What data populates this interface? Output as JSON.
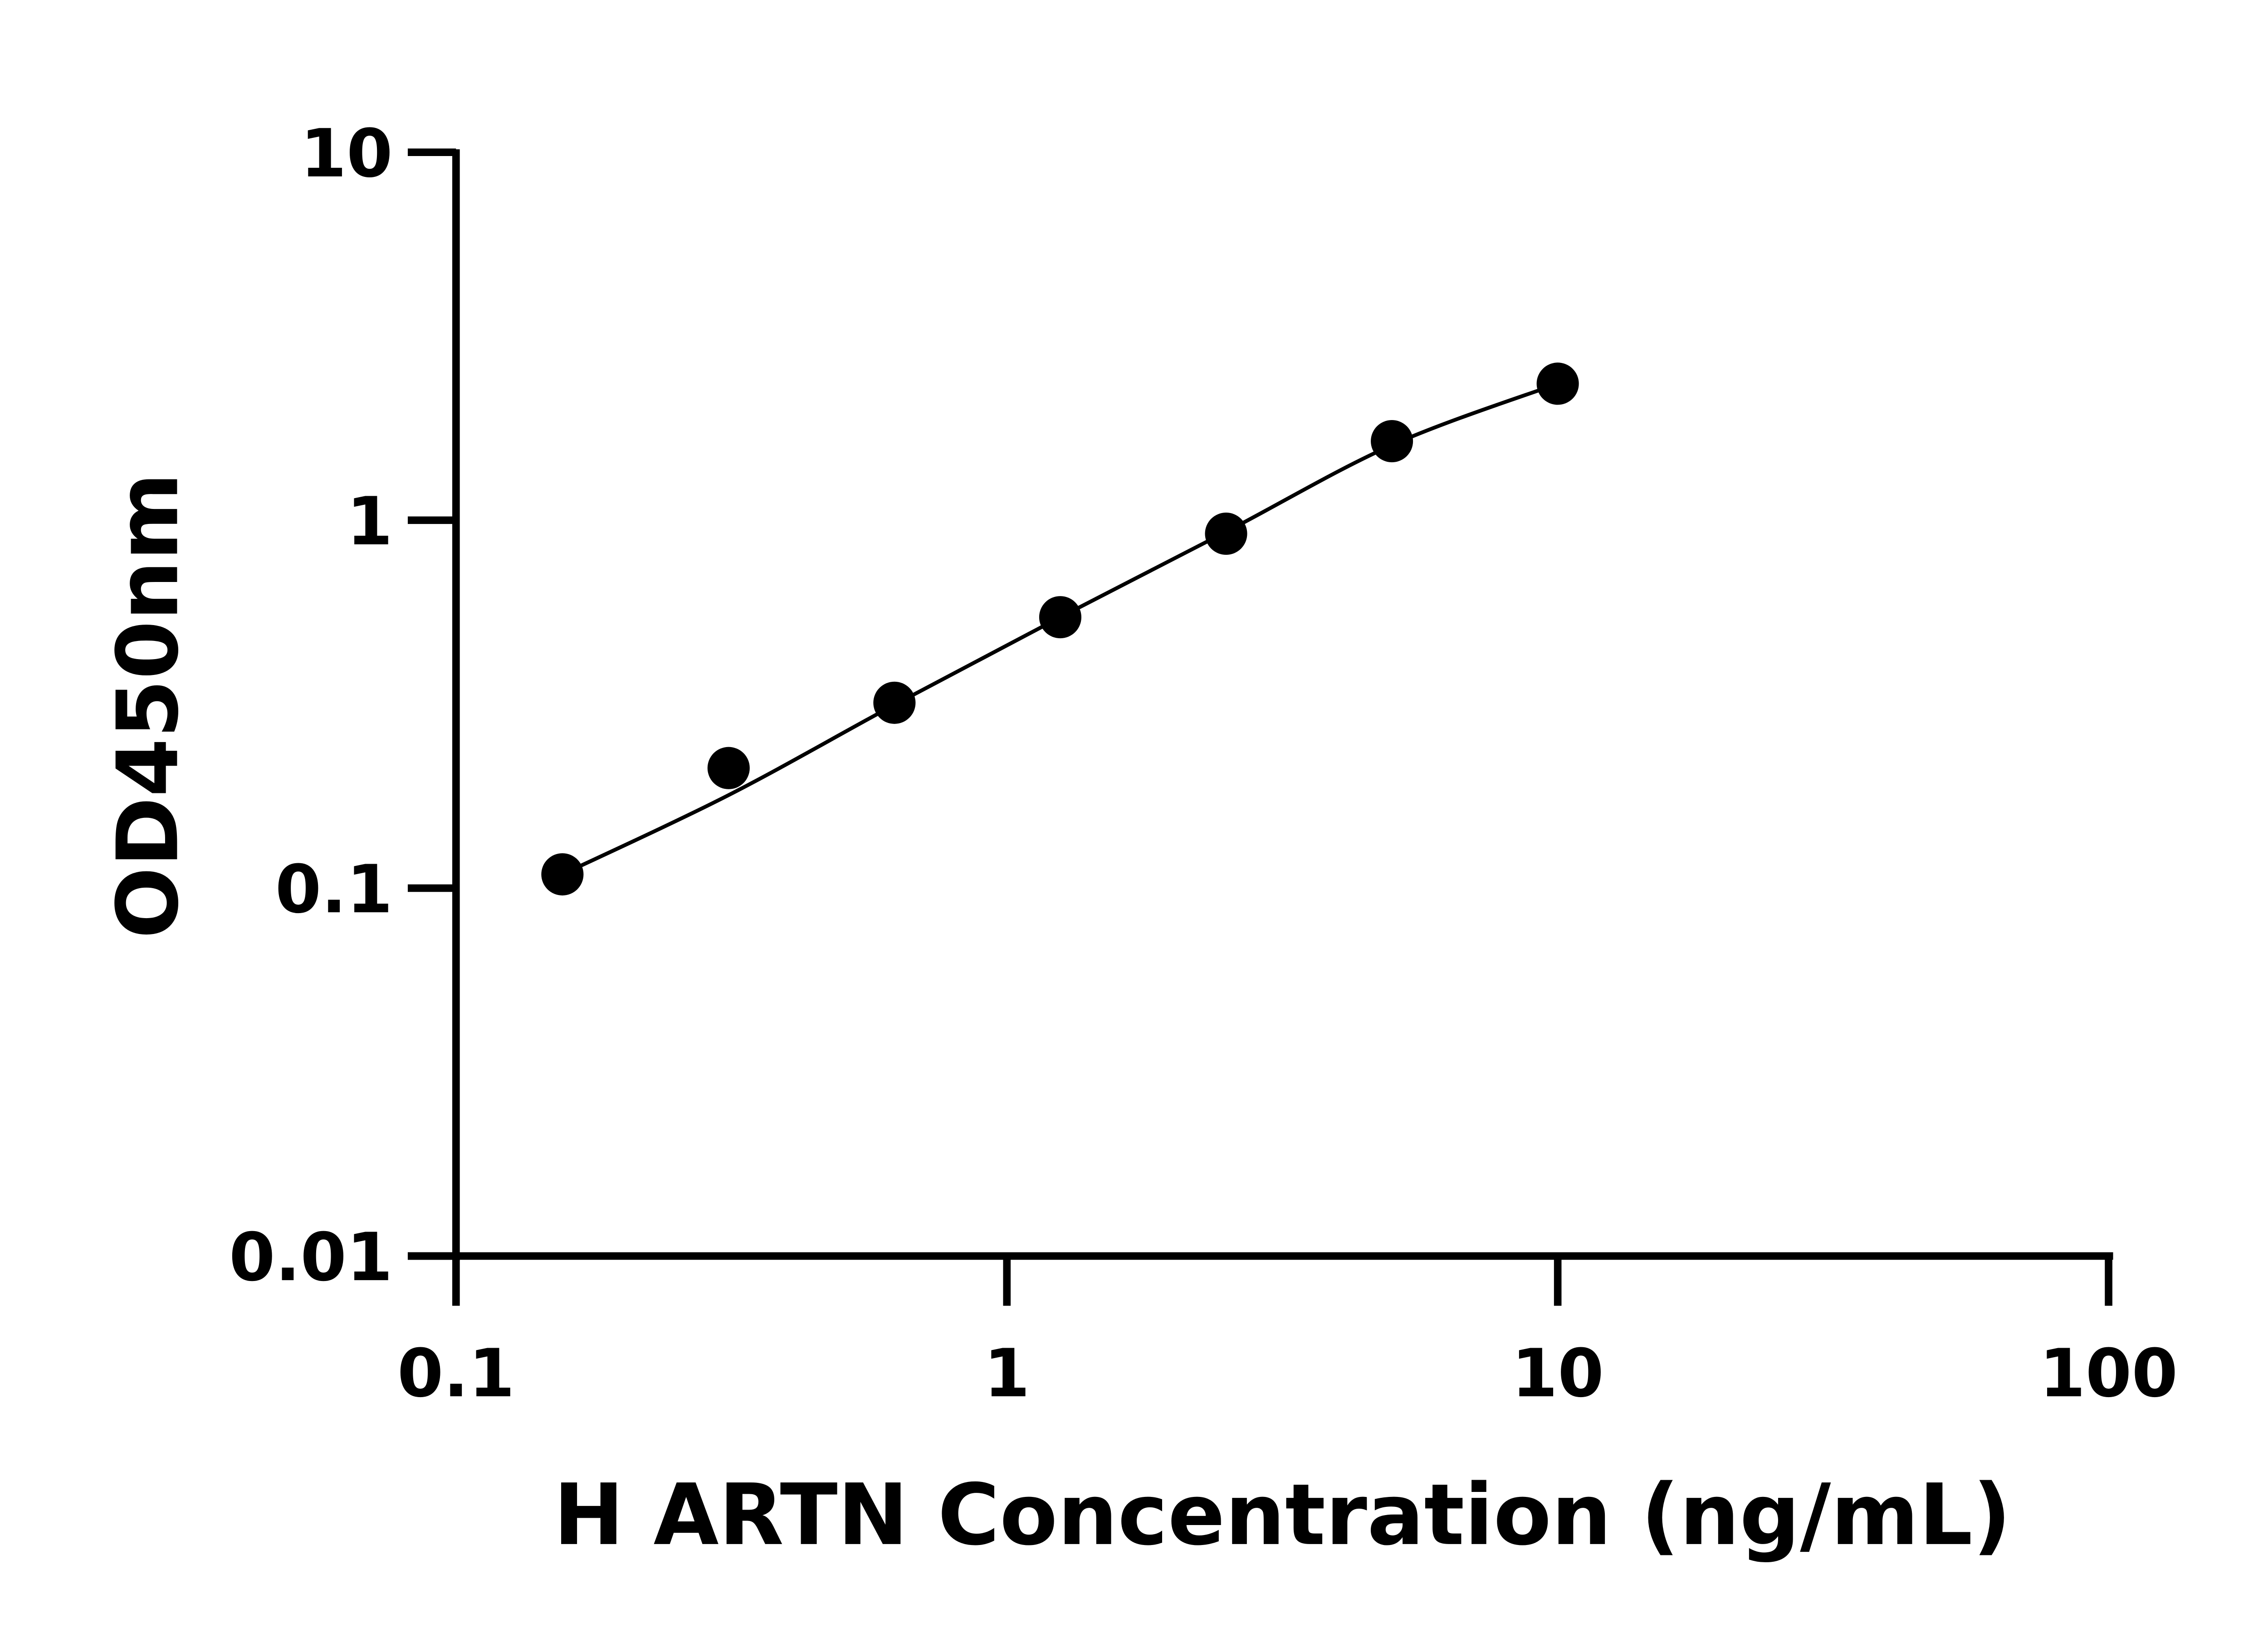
{
  "chart_data": {
    "type": "scatter",
    "title": "",
    "xlabel": "H ARTN Concentration (ng/mL)",
    "ylabel": "OD450nm",
    "x_scale": "log",
    "y_scale": "log",
    "xlim": [
      0.1,
      100
    ],
    "ylim": [
      0.01,
      10
    ],
    "x_ticks": [
      "0.1",
      "1",
      "10",
      "100"
    ],
    "y_ticks": [
      "0.01",
      "0.1",
      "1",
      "10"
    ],
    "grid": false,
    "legend": "none",
    "marker_color": "#000000",
    "series": [
      {
        "x": [
          0.156,
          0.3125,
          0.625,
          1.25,
          2.5,
          5,
          10
        ],
        "y": [
          0.109,
          0.212,
          0.319,
          0.545,
          0.919,
          1.64,
          2.35
        ]
      }
    ],
    "fit_curve": {
      "x": [
        0.156,
        0.3125,
        0.625,
        1.25,
        2.5,
        5,
        10
      ],
      "y": [
        0.109,
        0.179,
        0.315,
        0.545,
        0.93,
        1.6,
        2.35
      ]
    }
  }
}
